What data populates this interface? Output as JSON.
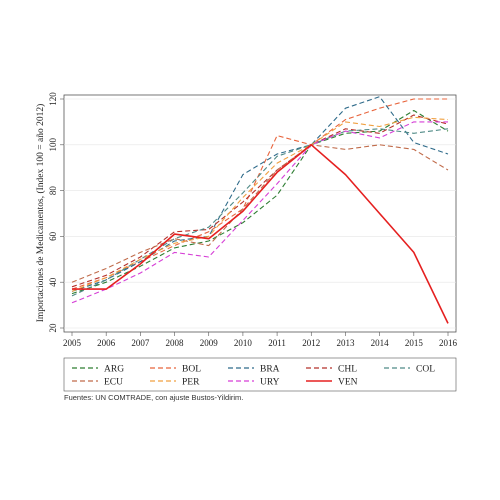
{
  "chart_data": {
    "type": "line",
    "ylabel": "Importaciones de Medicamentos, (Index 100 = año 2012)",
    "ylim": [
      20,
      120
    ],
    "yticks": [
      20,
      40,
      60,
      80,
      100,
      120
    ],
    "x": [
      2005,
      2006,
      2007,
      2008,
      2009,
      2010,
      2011,
      2012,
      2013,
      2014,
      2015,
      2016
    ],
    "legend_placement": "bottom",
    "source": "Fuentes: UN COMTRADE, con ajuste Bustos-Yildirim.",
    "series": [
      {
        "name": "ARG",
        "color": "#2e7d32",
        "style": "dashed",
        "values": [
          35,
          40,
          47,
          55,
          58,
          66,
          78,
          100,
          105,
          106,
          115,
          106
        ]
      },
      {
        "name": "BOL",
        "color": "#e8643c",
        "style": "dashed",
        "values": [
          37,
          42,
          49,
          56,
          62,
          72,
          104,
          100,
          111,
          116,
          120,
          120
        ]
      },
      {
        "name": "BRA",
        "color": "#2f6b8a",
        "style": "dashed",
        "values": [
          36,
          41,
          49,
          58,
          60,
          87,
          96,
          100,
          116,
          121,
          101,
          96
        ]
      },
      {
        "name": "CHL",
        "color": "#b5302a",
        "style": "dashed",
        "values": [
          38,
          43,
          51,
          62,
          63,
          75,
          89,
          100,
          107,
          105,
          113,
          109
        ]
      },
      {
        "name": "COL",
        "color": "#4f8a86",
        "style": "dashed",
        "values": [
          34,
          41,
          50,
          59,
          64,
          79,
          95,
          100,
          106,
          107,
          105,
          107
        ]
      },
      {
        "name": "ECU",
        "color": "#c06b4a",
        "style": "dashed",
        "values": [
          40,
          46,
          53,
          59,
          56,
          72,
          89,
          100,
          98,
          100,
          98,
          89
        ]
      },
      {
        "name": "PER",
        "color": "#f0a040",
        "style": "dashed",
        "values": [
          36,
          42,
          50,
          57,
          60,
          77,
          92,
          100,
          110,
          108,
          112,
          111
        ]
      },
      {
        "name": "URY",
        "color": "#d63fd6",
        "style": "dashed",
        "values": [
          31,
          37,
          44,
          53,
          51,
          67,
          83,
          100,
          106,
          103,
          110,
          110
        ]
      },
      {
        "name": "VEN",
        "color": "#e52020",
        "style": "solid",
        "values": [
          37,
          37,
          48,
          61,
          59,
          71,
          88,
          100,
          87,
          70,
          53,
          22
        ]
      }
    ]
  }
}
